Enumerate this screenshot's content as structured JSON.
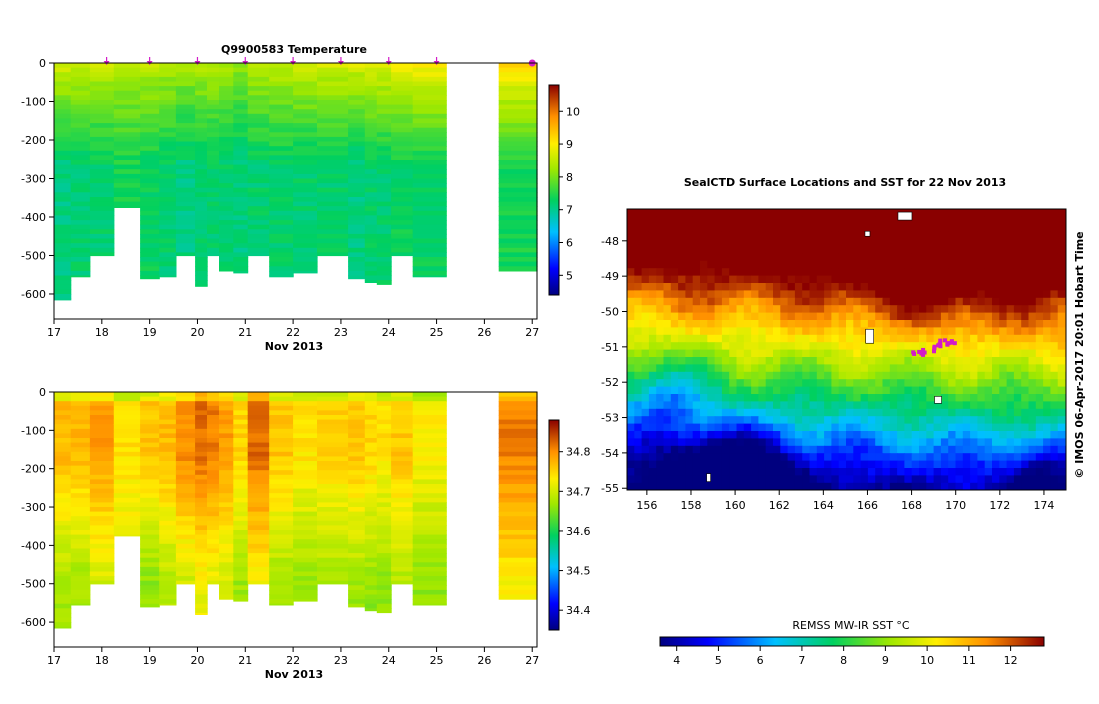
{
  "chart_data": [
    {
      "type": "heatmap",
      "panel": "temperature-section",
      "title": "Q9900583  Temperature",
      "xlabel": "Nov 2013",
      "x_ticks": [
        "17",
        "18",
        "19",
        "20",
        "21",
        "22",
        "23",
        "24",
        "25",
        "26",
        "27"
      ],
      "xlim": [
        17,
        27.1
      ],
      "y_ticks": [
        "0",
        "-100",
        "-200",
        "-300",
        "-400",
        "-500",
        "-600"
      ],
      "ylim": [
        -665,
        0
      ],
      "colorbar": {
        "ticks": [
          "5",
          "6",
          "7",
          "8",
          "9",
          "10"
        ],
        "range": [
          4.4,
          10.8
        ]
      },
      "profile_markers_x": [
        18.1,
        19.0,
        20.0,
        21.0,
        22.0,
        23.0,
        24.0,
        25.0,
        27.0
      ],
      "profiles": [
        {
          "x0": 17.0,
          "x1": 17.35,
          "maxdepth": 615,
          "surface": 8.7,
          "deep": 7.1
        },
        {
          "x0": 17.35,
          "x1": 17.75,
          "maxdepth": 555,
          "surface": 8.6,
          "deep": 7.2
        },
        {
          "x0": 17.75,
          "x1": 18.25,
          "maxdepth": 500,
          "surface": 8.6,
          "deep": 7.2
        },
        {
          "x0": 18.25,
          "x1": 18.8,
          "maxdepth": 375,
          "surface": 8.4,
          "deep": 7.4
        },
        {
          "x0": 18.8,
          "x1": 19.2,
          "maxdepth": 560,
          "surface": 8.5,
          "deep": 7.3
        },
        {
          "x0": 19.2,
          "x1": 19.55,
          "maxdepth": 555,
          "surface": 8.4,
          "deep": 7.2
        },
        {
          "x0": 19.55,
          "x1": 19.95,
          "maxdepth": 500,
          "surface": 8.3,
          "deep": 7.1
        },
        {
          "x0": 19.95,
          "x1": 20.2,
          "maxdepth": 580,
          "surface": 8.4,
          "deep": 7.2
        },
        {
          "x0": 20.2,
          "x1": 20.45,
          "maxdepth": 500,
          "surface": 8.4,
          "deep": 7.2
        },
        {
          "x0": 20.45,
          "x1": 20.75,
          "maxdepth": 540,
          "surface": 8.3,
          "deep": 7.2
        },
        {
          "x0": 20.75,
          "x1": 21.05,
          "maxdepth": 545,
          "surface": 8.2,
          "deep": 7.1
        },
        {
          "x0": 21.05,
          "x1": 21.5,
          "maxdepth": 500,
          "surface": 8.4,
          "deep": 7.2
        },
        {
          "x0": 21.5,
          "x1": 22.0,
          "maxdepth": 555,
          "surface": 8.5,
          "deep": 7.2
        },
        {
          "x0": 22.0,
          "x1": 22.5,
          "maxdepth": 545,
          "surface": 8.6,
          "deep": 7.2
        },
        {
          "x0": 22.5,
          "x1": 23.15,
          "maxdepth": 500,
          "surface": 8.7,
          "deep": 7.2
        },
        {
          "x0": 23.15,
          "x1": 23.5,
          "maxdepth": 560,
          "surface": 8.7,
          "deep": 7.1
        },
        {
          "x0": 23.5,
          "x1": 23.75,
          "maxdepth": 570,
          "surface": 8.8,
          "deep": 7.2
        },
        {
          "x0": 23.75,
          "x1": 24.05,
          "maxdepth": 575,
          "surface": 8.8,
          "deep": 7.2
        },
        {
          "x0": 24.05,
          "x1": 24.5,
          "maxdepth": 500,
          "surface": 8.9,
          "deep": 7.3
        },
        {
          "x0": 24.5,
          "x1": 25.2,
          "maxdepth": 555,
          "surface": 9.0,
          "deep": 7.3
        },
        {
          "x0": 26.3,
          "x1": 27.1,
          "maxdepth": 540,
          "surface": 9.2,
          "deep": 7.4
        }
      ]
    },
    {
      "type": "heatmap",
      "panel": "salinity-section",
      "xlabel": "Nov 2013",
      "x_ticks": [
        "17",
        "18",
        "19",
        "20",
        "21",
        "22",
        "23",
        "24",
        "25",
        "26",
        "27"
      ],
      "xlim": [
        17,
        27.1
      ],
      "y_ticks": [
        "0",
        "-100",
        "-200",
        "-300",
        "-400",
        "-500",
        "-600"
      ],
      "ylim": [
        -665,
        0
      ],
      "colorbar": {
        "ticks": [
          "34.4",
          "34.5",
          "34.6",
          "34.7",
          "34.8"
        ],
        "range": [
          34.35,
          34.88
        ]
      },
      "profiles": [
        {
          "x0": 17.0,
          "x1": 17.35,
          "maxdepth": 615,
          "mid": 34.77,
          "deep": 34.67
        },
        {
          "x0": 17.35,
          "x1": 17.75,
          "maxdepth": 555,
          "mid": 34.77,
          "deep": 34.67
        },
        {
          "x0": 17.75,
          "x1": 18.25,
          "maxdepth": 500,
          "mid": 34.79,
          "deep": 34.7
        },
        {
          "x0": 18.25,
          "x1": 18.8,
          "maxdepth": 375,
          "mid": 34.74,
          "deep": 34.7
        },
        {
          "x0": 18.8,
          "x1": 19.2,
          "maxdepth": 560,
          "mid": 34.76,
          "deep": 34.66
        },
        {
          "x0": 19.2,
          "x1": 19.55,
          "maxdepth": 555,
          "mid": 34.77,
          "deep": 34.68
        },
        {
          "x0": 19.55,
          "x1": 19.95,
          "maxdepth": 500,
          "mid": 34.8,
          "deep": 34.7
        },
        {
          "x0": 19.95,
          "x1": 20.2,
          "maxdepth": 580,
          "mid": 34.82,
          "deep": 34.72
        },
        {
          "x0": 20.2,
          "x1": 20.45,
          "maxdepth": 500,
          "mid": 34.81,
          "deep": 34.71
        },
        {
          "x0": 20.45,
          "x1": 20.75,
          "maxdepth": 540,
          "mid": 34.79,
          "deep": 34.7
        },
        {
          "x0": 20.75,
          "x1": 21.05,
          "maxdepth": 545,
          "mid": 34.75,
          "deep": 34.67
        },
        {
          "x0": 21.05,
          "x1": 21.5,
          "maxdepth": 500,
          "mid": 34.82,
          "deep": 34.72
        },
        {
          "x0": 21.5,
          "x1": 22.0,
          "maxdepth": 555,
          "mid": 34.76,
          "deep": 34.67
        },
        {
          "x0": 22.0,
          "x1": 22.5,
          "maxdepth": 545,
          "mid": 34.74,
          "deep": 34.66
        },
        {
          "x0": 22.5,
          "x1": 23.15,
          "maxdepth": 500,
          "mid": 34.75,
          "deep": 34.67
        },
        {
          "x0": 23.15,
          "x1": 23.5,
          "maxdepth": 560,
          "mid": 34.76,
          "deep": 34.67
        },
        {
          "x0": 23.5,
          "x1": 23.75,
          "maxdepth": 570,
          "mid": 34.75,
          "deep": 34.66
        },
        {
          "x0": 23.75,
          "x1": 24.05,
          "maxdepth": 575,
          "mid": 34.74,
          "deep": 34.66
        },
        {
          "x0": 24.05,
          "x1": 24.5,
          "maxdepth": 500,
          "mid": 34.76,
          "deep": 34.68
        },
        {
          "x0": 24.5,
          "x1": 25.2,
          "maxdepth": 555,
          "mid": 34.73,
          "deep": 34.66
        },
        {
          "x0": 26.3,
          "x1": 27.1,
          "maxdepth": 540,
          "mid": 34.81,
          "deep": 34.73
        }
      ]
    },
    {
      "type": "heatmap",
      "panel": "sst-map",
      "title": "SealCTD  Surface Locations and SST for 22 Nov 2013",
      "x_ticks": [
        "156",
        "158",
        "160",
        "162",
        "164",
        "166",
        "168",
        "170",
        "172",
        "174"
      ],
      "xlim": [
        155.1,
        175.0
      ],
      "y_ticks": [
        "-48",
        "-49",
        "-50",
        "-51",
        "-52",
        "-53",
        "-54",
        "-55"
      ],
      "ylim": [
        -55.05,
        -47.1
      ],
      "colorbar": {
        "label": "REMSS MW-IR SST °C",
        "ticks": [
          "4",
          "5",
          "6",
          "7",
          "8",
          "9",
          "10",
          "11",
          "12"
        ],
        "range": [
          3.6,
          12.8
        ]
      },
      "side_label": "© IMOS 06-Apr-2017 20:01 Hobart Time",
      "track": [
        [
          168.3,
          -51.2
        ],
        [
          168.6,
          -51.15
        ],
        [
          168.9,
          -51.05
        ],
        [
          169.2,
          -50.95
        ],
        [
          169.5,
          -50.9
        ],
        [
          169.8,
          -50.85
        ]
      ]
    }
  ],
  "colors": {
    "marker": "#d21cc8",
    "land": "#ffffff"
  }
}
